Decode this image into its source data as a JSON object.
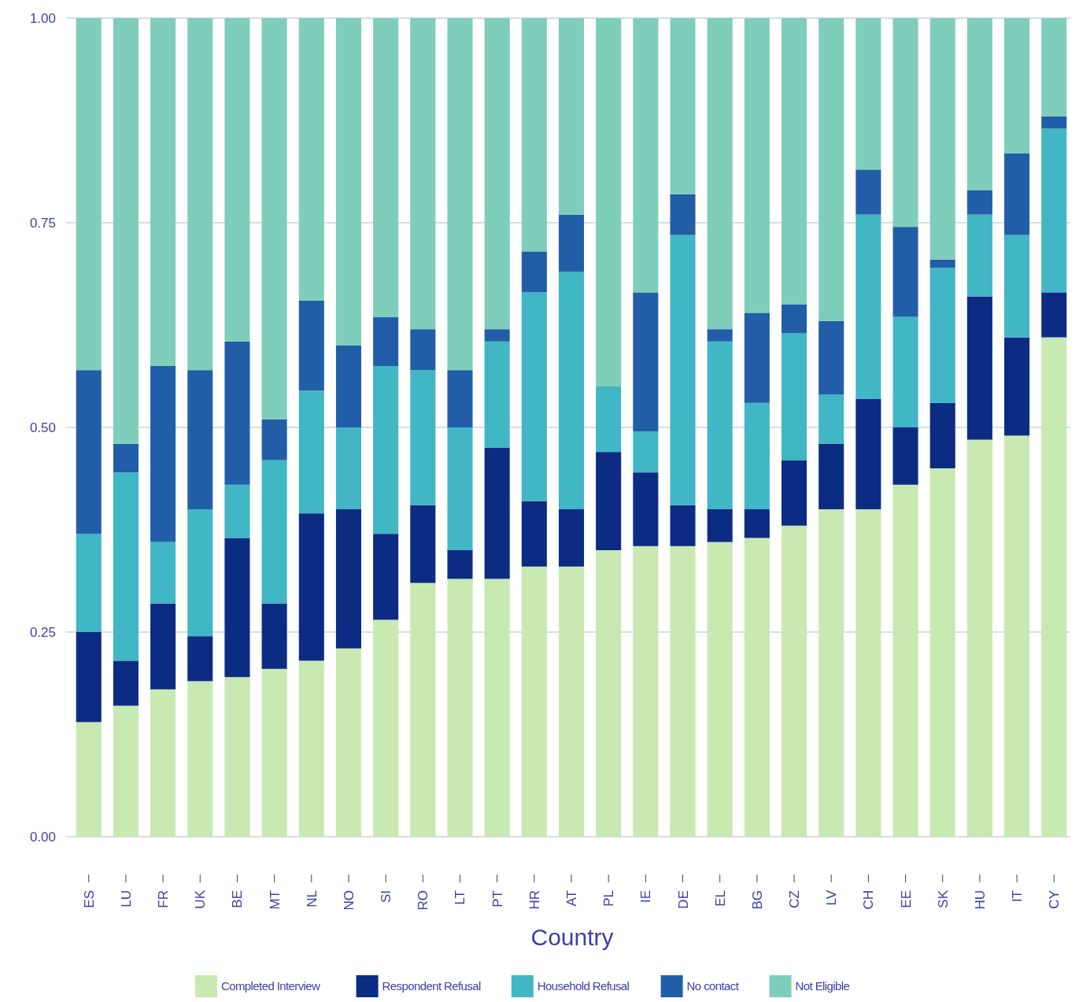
{
  "chart_data": {
    "type": "bar",
    "stacked": true,
    "xlabel": "Country",
    "categories": [
      "ES",
      "LU",
      "FR",
      "UK",
      "BE",
      "MT",
      "NL",
      "NO",
      "SI",
      "RO",
      "LT",
      "PT",
      "HR",
      "AT",
      "PL",
      "IE",
      "DE",
      "EL",
      "BG",
      "CZ",
      "LV",
      "CH",
      "EE",
      "SK",
      "HU",
      "IT",
      "CY"
    ],
    "series": [
      {
        "name": "Completed Interview",
        "color": "#c8e9b1",
        "values": [
          0.14,
          0.16,
          0.18,
          0.19,
          0.195,
          0.205,
          0.215,
          0.23,
          0.265,
          0.31,
          0.315,
          0.315,
          0.33,
          0.33,
          0.35,
          0.355,
          0.355,
          0.36,
          0.365,
          0.38,
          0.4,
          0.4,
          0.43,
          0.45,
          0.485,
          0.49,
          0.61
        ]
      },
      {
        "name": "Respondent Refusal",
        "color": "#0c2c84",
        "values": [
          0.11,
          0.055,
          0.105,
          0.055,
          0.17,
          0.08,
          0.18,
          0.17,
          0.105,
          0.095,
          0.035,
          0.16,
          0.08,
          0.07,
          0.12,
          0.09,
          0.05,
          0.04,
          0.035,
          0.08,
          0.08,
          0.135,
          0.07,
          0.08,
          0.175,
          0.12,
          0.055
        ]
      },
      {
        "name": "Household Refusal",
        "color": "#41b6c4",
        "values": [
          0.12,
          0.23,
          0.075,
          0.155,
          0.065,
          0.175,
          0.15,
          0.1,
          0.205,
          0.165,
          0.15,
          0.13,
          0.255,
          0.29,
          0.08,
          0.05,
          0.33,
          0.205,
          0.13,
          0.155,
          0.06,
          0.225,
          0.135,
          0.165,
          0.1,
          0.125,
          0.2
        ]
      },
      {
        "name": "No contact",
        "color": "#225ea8",
        "values": [
          0.2,
          0.035,
          0.215,
          0.17,
          0.175,
          0.05,
          0.11,
          0.1,
          0.06,
          0.05,
          0.07,
          0.015,
          0.05,
          0.07,
          0,
          0.17,
          0.05,
          0.015,
          0.11,
          0.035,
          0.09,
          0.055,
          0.11,
          0.01,
          0.03,
          0.1,
          0.015
        ]
      },
      {
        "name": "Not Eligible",
        "color": "#7fcdbb",
        "values": [
          0.43,
          0.52,
          0.425,
          0.43,
          0.395,
          0.49,
          0.345,
          0.4,
          0.365,
          0.38,
          0.43,
          0.38,
          0.285,
          0.24,
          0.45,
          0.335,
          0.215,
          0.38,
          0.36,
          0.35,
          0.37,
          0.185,
          0.255,
          0.295,
          0.21,
          0.165,
          0.12
        ]
      }
    ],
    "ylim": [
      0,
      1
    ],
    "yticks": [
      {
        "value": 0,
        "label": "0.00"
      },
      {
        "value": 0.25,
        "label": "0.25"
      },
      {
        "value": 0.5,
        "label": "0.50"
      },
      {
        "value": 0.75,
        "label": "0.75"
      },
      {
        "value": 1,
        "label": "1.00"
      }
    ],
    "grid": "y",
    "legend": "bottom"
  }
}
